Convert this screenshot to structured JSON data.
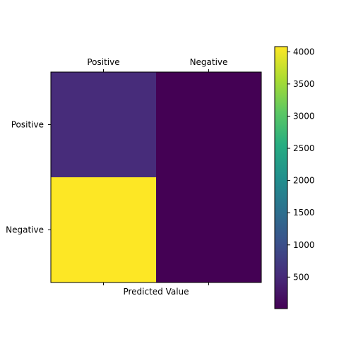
{
  "chart_data": {
    "type": "heatmap",
    "title": "",
    "xlabel": "Predicted Value",
    "ylabel": "",
    "x_categories": [
      "Positive",
      "Negative"
    ],
    "y_categories": [
      "Positive",
      "Negative"
    ],
    "values": [
      [
        520,
        10
      ],
      [
        4080,
        15
      ]
    ],
    "colormap": "viridis",
    "colorbar": {
      "range": [
        10,
        4080
      ],
      "ticks": [
        500,
        1000,
        1500,
        2000,
        2500,
        3000,
        3500,
        4000
      ],
      "tick_labels": [
        "500",
        "1000",
        "1500",
        "2000",
        "2500",
        "3000",
        "3500",
        "4000"
      ]
    },
    "x_tick_position": "top",
    "grid": false
  }
}
